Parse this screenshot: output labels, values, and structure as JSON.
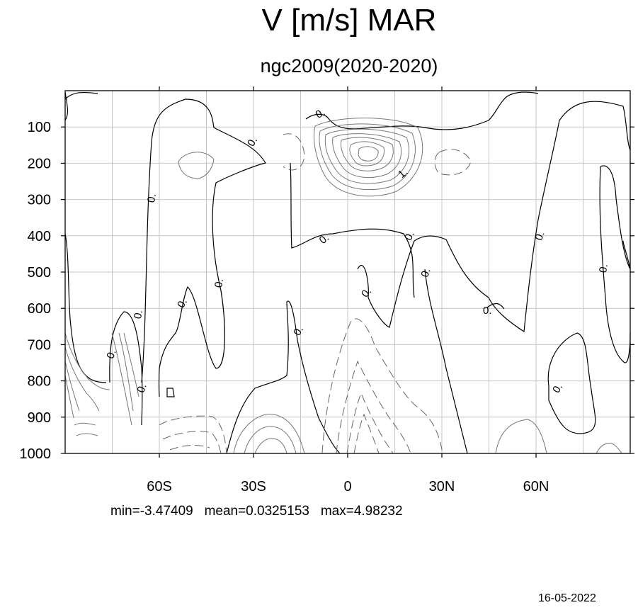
{
  "chart_data": {
    "type": "contour",
    "title": "V [m/s] MAR",
    "subtitle": "ngc2009(2020-2020)",
    "x_ticks": [
      "60S",
      "30S",
      "0",
      "30N",
      "60N"
    ],
    "x_tick_values": [
      -60,
      -30,
      0,
      30,
      60
    ],
    "xlim": [
      -90,
      90
    ],
    "y_ticks": [
      "100",
      "200",
      "300",
      "400",
      "500",
      "600",
      "700",
      "800",
      "900",
      "1000"
    ],
    "y_tick_values": [
      100,
      200,
      300,
      400,
      500,
      600,
      700,
      800,
      900,
      1000
    ],
    "ylim": [
      0,
      1000
    ],
    "y_reversed": true,
    "grid": true,
    "contour_labels": [
      "0.",
      "1."
    ],
    "stats": {
      "min": "min=-3.47409",
      "mean": "mean=0.0325153",
      "max": "max=4.98232"
    }
  },
  "footer": {
    "date": "16-05-2022"
  }
}
